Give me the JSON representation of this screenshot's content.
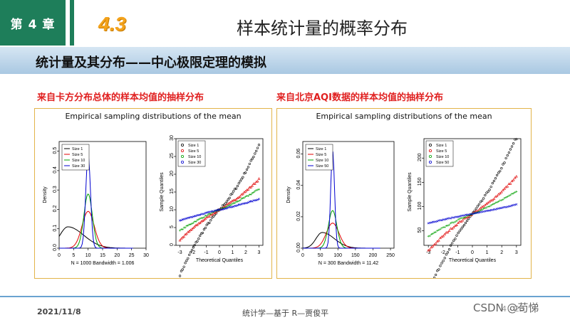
{
  "header": {
    "chapter": "第 4 章",
    "section_number": "4.3",
    "title": "样本统计量的概率分布",
    "subtitle": "统计量及其分布——中心极限定理的模拟"
  },
  "panels": [
    {
      "label": "来自卡方分布总体的样本均值的抽样分布",
      "figure_title": "Empirical sampling distributions of the mean",
      "density_caption": "N = 1000   Bandwidth = 1.006",
      "qq_xlabel": "Theoretical Quantiles",
      "qq_ylabel": "Sample Quantiles",
      "density_ylabel": "Density",
      "legend": [
        "Size 1",
        "Size 5",
        "Size 10",
        "Size 30"
      ]
    },
    {
      "label": "来自北京AQI数据的样本均值的抽样分布",
      "figure_title": "Empirical sampling distributions of the mean",
      "density_caption": "N = 300   Bandwidth = 11.42",
      "qq_xlabel": "Theoretical Quantiles",
      "qq_ylabel": "Sample Quantiles",
      "density_ylabel": "Density",
      "legend": [
        "Size 1",
        "Size 5",
        "Size 10",
        "Size 50"
      ]
    }
  ],
  "footer": {
    "date": "2021/11/8",
    "center": "统计学—基于 R—贾俊平",
    "watermark": "CSDN @苟悌",
    "page": "4 - 23"
  },
  "chart_data": [
    {
      "type": "line",
      "panel": 1,
      "x_ticks": [
        "0",
        "5",
        "10",
        "15",
        "20",
        "25",
        "30"
      ],
      "y_ticks": [
        "0.0",
        "0.1",
        "0.2",
        "0.3",
        "0.4",
        "0.5"
      ],
      "xlim": [
        0,
        30
      ],
      "ylim": [
        0,
        0.55
      ],
      "series": [
        {
          "name": "Size 1",
          "color": "#000000",
          "peak_x": 3,
          "peak_y": 0.11,
          "sd": 5.5
        },
        {
          "name": "Size 5",
          "color": "#e00000",
          "peak_x": 10,
          "peak_y": 0.19,
          "sd": 2.1
        },
        {
          "name": "Size 10",
          "color": "#00a000",
          "peak_x": 10,
          "peak_y": 0.28,
          "sd": 1.45
        },
        {
          "name": "Size 30",
          "color": "#0000d0",
          "peak_x": 10,
          "peak_y": 0.48,
          "sd": 0.82
        }
      ]
    },
    {
      "type": "scatter",
      "panel": 1,
      "x_ticks": [
        "-3",
        "-2",
        "-1",
        "0",
        "1",
        "2",
        "3"
      ],
      "y_ticks": [
        "0",
        "5",
        "10",
        "15",
        "20",
        "25",
        "30"
      ],
      "xlim": [
        -3.3,
        3.3
      ],
      "ylim": [
        0,
        30
      ],
      "series": [
        {
          "name": "Size 1",
          "color": "#000000",
          "marker": "circle"
        },
        {
          "name": "Size 5",
          "color": "#e00000",
          "marker": "triangle"
        },
        {
          "name": "Size 10",
          "color": "#00a000",
          "marker": "plus"
        },
        {
          "name": "Size 30",
          "color": "#0000d0",
          "marker": "cross"
        }
      ]
    },
    {
      "type": "line",
      "panel": 2,
      "x_ticks": [
        "0",
        "50",
        "100",
        "150",
        "200",
        "250"
      ],
      "y_ticks": [
        "0.00",
        "0.02",
        "0.04",
        "0.06"
      ],
      "xlim": [
        0,
        260
      ],
      "ylim": [
        0,
        0.068
      ],
      "series": [
        {
          "name": "Size 1",
          "color": "#000000",
          "peak_x": 55,
          "peak_y": 0.01,
          "sd": 35
        },
        {
          "name": "Size 5",
          "color": "#e00000",
          "peak_x": 85,
          "peak_y": 0.016,
          "sd": 18
        },
        {
          "name": "Size 10",
          "color": "#00a000",
          "peak_x": 85,
          "peak_y": 0.024,
          "sd": 12
        },
        {
          "name": "Size 50",
          "color": "#0000d0",
          "peak_x": 85,
          "peak_y": 0.062,
          "sd": 5.5
        }
      ]
    },
    {
      "type": "scatter",
      "panel": 2,
      "x_ticks": [
        "-3",
        "-2",
        "-1",
        "0",
        "1",
        "2",
        "3"
      ],
      "y_ticks": [
        "50",
        "100",
        "150",
        "200"
      ],
      "xlim": [
        -3.3,
        3.3
      ],
      "ylim": [
        20,
        240
      ],
      "series": [
        {
          "name": "Size 1",
          "color": "#000000",
          "marker": "circle"
        },
        {
          "name": "Size 5",
          "color": "#e00000",
          "marker": "triangle"
        },
        {
          "name": "Size 10",
          "color": "#00a000",
          "marker": "plus"
        },
        {
          "name": "Size 50",
          "color": "#0000d0",
          "marker": "cross"
        }
      ]
    }
  ]
}
